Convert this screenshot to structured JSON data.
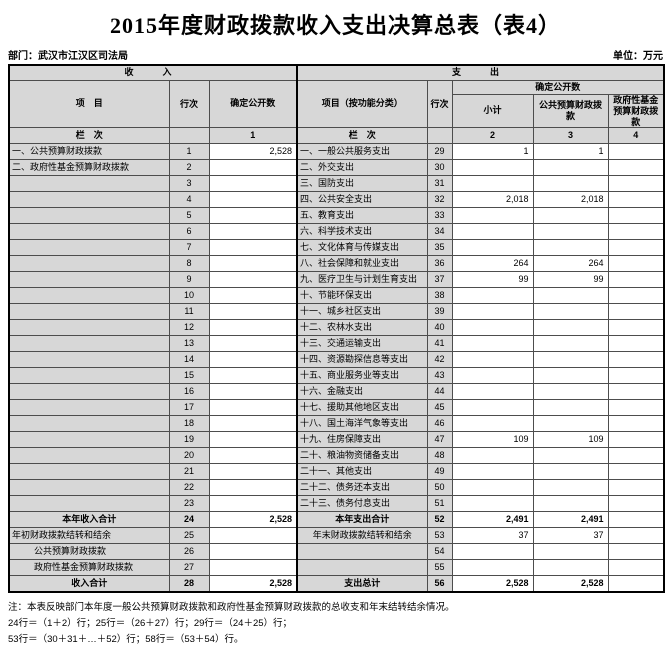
{
  "title": "2015年度财政拨款收入支出决算总表（表4）",
  "meta": {
    "department": "部门：武汉市江汉区司法局",
    "unit": "单位：万元"
  },
  "colors": {
    "header_bg": "#d7d7d7",
    "grid_line": "#4d4d4d",
    "outer_border": "#000000",
    "value_cell_bg": "#ffffff"
  },
  "table": {
    "section_income": "收　入",
    "section_expense": "支　出",
    "col_item": "项　目",
    "col_line": "行次",
    "col_amount": "确定公开数",
    "col_item_fn": "项目（按功能分类）",
    "col_subtotal": "小计",
    "col_public": "公共预算财政拨款",
    "col_gov": "政府性基金预算财政拨款",
    "index_row": {
      "label": "栏　次",
      "c1": "1",
      "c2": "2",
      "c3": "3",
      "c4": "4"
    },
    "rows": [
      {
        "i_label": "一、公共预算财政拨款",
        "i_row": "1",
        "i_val": "2,528",
        "e_label": "一、一般公共服务支出",
        "e_row": "29",
        "e_sub": "1",
        "e_pub": "1",
        "e_gov": ""
      },
      {
        "i_label": "二、政府性基金预算财政拨款",
        "i_row": "2",
        "i_val": "",
        "e_label": "二、外交支出",
        "e_row": "30",
        "e_sub": "",
        "e_pub": "",
        "e_gov": ""
      },
      {
        "i_label": "",
        "i_row": "3",
        "i_val": "",
        "e_label": "三、国防支出",
        "e_row": "31",
        "e_sub": "",
        "e_pub": "",
        "e_gov": ""
      },
      {
        "i_label": "",
        "i_row": "4",
        "i_val": "",
        "e_label": "四、公共安全支出",
        "e_row": "32",
        "e_sub": "2,018",
        "e_pub": "2,018",
        "e_gov": ""
      },
      {
        "i_label": "",
        "i_row": "5",
        "i_val": "",
        "e_label": "五、教育支出",
        "e_row": "33",
        "e_sub": "",
        "e_pub": "",
        "e_gov": ""
      },
      {
        "i_label": "",
        "i_row": "6",
        "i_val": "",
        "e_label": "六、科学技术支出",
        "e_row": "34",
        "e_sub": "",
        "e_pub": "",
        "e_gov": ""
      },
      {
        "i_label": "",
        "i_row": "7",
        "i_val": "",
        "e_label": "七、文化体育与传媒支出",
        "e_row": "35",
        "e_sub": "",
        "e_pub": "",
        "e_gov": ""
      },
      {
        "i_label": "",
        "i_row": "8",
        "i_val": "",
        "e_label": "八、社会保障和就业支出",
        "e_row": "36",
        "e_sub": "264",
        "e_pub": "264",
        "e_gov": ""
      },
      {
        "i_label": "",
        "i_row": "9",
        "i_val": "",
        "e_label": "九、医疗卫生与计划生育支出",
        "e_row": "37",
        "e_sub": "99",
        "e_pub": "99",
        "e_gov": ""
      },
      {
        "i_label": "",
        "i_row": "10",
        "i_val": "",
        "e_label": "十、节能环保支出",
        "e_row": "38",
        "e_sub": "",
        "e_pub": "",
        "e_gov": ""
      },
      {
        "i_label": "",
        "i_row": "11",
        "i_val": "",
        "e_label": "十一、城乡社区支出",
        "e_row": "39",
        "e_sub": "",
        "e_pub": "",
        "e_gov": ""
      },
      {
        "i_label": "",
        "i_row": "12",
        "i_val": "",
        "e_label": "十二、农林水支出",
        "e_row": "40",
        "e_sub": "",
        "e_pub": "",
        "e_gov": ""
      },
      {
        "i_label": "",
        "i_row": "13",
        "i_val": "",
        "e_label": "十三、交通运输支出",
        "e_row": "41",
        "e_sub": "",
        "e_pub": "",
        "e_gov": ""
      },
      {
        "i_label": "",
        "i_row": "14",
        "i_val": "",
        "e_label": "十四、资源勘探信息等支出",
        "e_row": "42",
        "e_sub": "",
        "e_pub": "",
        "e_gov": ""
      },
      {
        "i_label": "",
        "i_row": "15",
        "i_val": "",
        "e_label": "十五、商业服务业等支出",
        "e_row": "43",
        "e_sub": "",
        "e_pub": "",
        "e_gov": ""
      },
      {
        "i_label": "",
        "i_row": "16",
        "i_val": "",
        "e_label": "十六、金融支出",
        "e_row": "44",
        "e_sub": "",
        "e_pub": "",
        "e_gov": ""
      },
      {
        "i_label": "",
        "i_row": "17",
        "i_val": "",
        "e_label": "十七、援助其他地区支出",
        "e_row": "45",
        "e_sub": "",
        "e_pub": "",
        "e_gov": ""
      },
      {
        "i_label": "",
        "i_row": "18",
        "i_val": "",
        "e_label": "十八、国土海洋气象等支出",
        "e_row": "46",
        "e_sub": "",
        "e_pub": "",
        "e_gov": ""
      },
      {
        "i_label": "",
        "i_row": "19",
        "i_val": "",
        "e_label": "十九、住房保障支出",
        "e_row": "47",
        "e_sub": "109",
        "e_pub": "109",
        "e_gov": ""
      },
      {
        "i_label": "",
        "i_row": "20",
        "i_val": "",
        "e_label": "二十、粮油物资储备支出",
        "e_row": "48",
        "e_sub": "",
        "e_pub": "",
        "e_gov": ""
      },
      {
        "i_label": "",
        "i_row": "21",
        "i_val": "",
        "e_label": "二十一、其他支出",
        "e_row": "49",
        "e_sub": "",
        "e_pub": "",
        "e_gov": ""
      },
      {
        "i_label": "",
        "i_row": "22",
        "i_val": "",
        "e_label": "二十二、债务还本支出",
        "e_row": "50",
        "e_sub": "",
        "e_pub": "",
        "e_gov": ""
      },
      {
        "i_label": "",
        "i_row": "23",
        "i_val": "",
        "e_label": "二十三、债务付息支出",
        "e_row": "51",
        "e_sub": "",
        "e_pub": "",
        "e_gov": ""
      },
      {
        "bold": true,
        "i_center": true,
        "e_center": true,
        "i_label": "本年收入合计",
        "i_row": "24",
        "i_val": "2,528",
        "e_label": "本年支出合计",
        "e_row": "52",
        "e_sub": "2,491",
        "e_pub": "2,491",
        "e_gov": ""
      },
      {
        "e_center": true,
        "i_label": "年初财政拨款结转和结余",
        "i_row": "25",
        "i_val": "",
        "e_label": "年末财政拨款结转和结余",
        "e_row": "53",
        "e_sub": "37",
        "e_pub": "37",
        "e_gov": ""
      },
      {
        "i_indent": true,
        "i_label": "公共预算财政拨款",
        "i_row": "26",
        "i_val": "",
        "e_label": "",
        "e_row": "54",
        "e_sub": "",
        "e_pub": "",
        "e_gov": ""
      },
      {
        "i_indent": true,
        "i_label": "政府性基金预算财政拨款",
        "i_row": "27",
        "i_val": "",
        "e_label": "",
        "e_row": "55",
        "e_sub": "",
        "e_pub": "",
        "e_gov": ""
      },
      {
        "bold": true,
        "i_center": true,
        "e_center": true,
        "i_label": "收入合计",
        "i_row": "28",
        "i_val": "2,528",
        "e_label": "支出总计",
        "e_row": "56",
        "e_sub": "2,528",
        "e_pub": "2,528",
        "e_gov": ""
      }
    ]
  },
  "notes": [
    "注：本表反映部门本年度一般公共预算财政拨款和政府性基金预算财政拨款的总收支和年末结转结余情况。",
    "24行＝（1＋2）行；25行＝（26＋27）行；29行＝（24＋25）行；",
    "53行＝（30＋31＋…＋52）行；58行＝（53＋54）行。"
  ]
}
